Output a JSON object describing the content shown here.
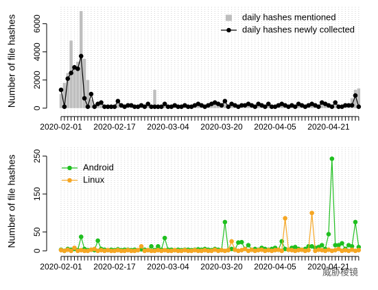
{
  "watermark": "威胁棱镜",
  "chart_data": [
    {
      "type": "combo",
      "ylabel": "Number of file hashes",
      "legend": "topright",
      "grid": true,
      "x": [
        "2020-02-01",
        "2020-02-02",
        "2020-02-03",
        "2020-02-04",
        "2020-02-05",
        "2020-02-06",
        "2020-02-07",
        "2020-02-08",
        "2020-02-09",
        "2020-02-10",
        "2020-02-11",
        "2020-02-12",
        "2020-02-13",
        "2020-02-14",
        "2020-02-15",
        "2020-02-16",
        "2020-02-17",
        "2020-02-18",
        "2020-02-19",
        "2020-02-20",
        "2020-02-21",
        "2020-02-22",
        "2020-02-23",
        "2020-02-24",
        "2020-02-25",
        "2020-02-26",
        "2020-02-27",
        "2020-02-28",
        "2020-02-29",
        "2020-03-01",
        "2020-03-02",
        "2020-03-03",
        "2020-03-04",
        "2020-03-05",
        "2020-03-06",
        "2020-03-07",
        "2020-03-08",
        "2020-03-09",
        "2020-03-10",
        "2020-03-11",
        "2020-03-12",
        "2020-03-13",
        "2020-03-14",
        "2020-03-15",
        "2020-03-16",
        "2020-03-17",
        "2020-03-18",
        "2020-03-19",
        "2020-03-20",
        "2020-03-21",
        "2020-03-22",
        "2020-03-23",
        "2020-03-24",
        "2020-03-25",
        "2020-03-26",
        "2020-03-27",
        "2020-03-28",
        "2020-03-29",
        "2020-03-30",
        "2020-03-31",
        "2020-04-01",
        "2020-04-02",
        "2020-04-03",
        "2020-04-04",
        "2020-04-05",
        "2020-04-06",
        "2020-04-07",
        "2020-04-08",
        "2020-04-09",
        "2020-04-10",
        "2020-04-11",
        "2020-04-12",
        "2020-04-13",
        "2020-04-14",
        "2020-04-15",
        "2020-04-16",
        "2020-04-17",
        "2020-04-18",
        "2020-04-19",
        "2020-04-20",
        "2020-04-21",
        "2020-04-22",
        "2020-04-23",
        "2020-04-24",
        "2020-04-25",
        "2020-04-26",
        "2020-04-27",
        "2020-04-28",
        "2020-04-29",
        "2020-04-30"
      ],
      "xticks": [
        "2020-02-01",
        "2020-02-17",
        "2020-03-04",
        "2020-03-20",
        "2020-04-05",
        "2020-04-21"
      ],
      "ylim": [
        -500,
        7200
      ],
      "yticks": [
        0,
        2000,
        4000,
        6000
      ],
      "series": [
        {
          "name": "daily hashes mentioned",
          "mark": "bar",
          "color": "#bebebe",
          "values": [
            1000,
            1800,
            2500,
            4800,
            3000,
            3300,
            6900,
            3500,
            2000,
            600,
            300,
            400,
            400,
            200,
            200,
            200,
            200,
            600,
            300,
            200,
            300,
            300,
            200,
            200,
            300,
            200,
            400,
            200,
            1300,
            200,
            200,
            400,
            200,
            200,
            300,
            200,
            200,
            300,
            200,
            200,
            300,
            400,
            300,
            200,
            300,
            400,
            500,
            400,
            300,
            500,
            200,
            400,
            300,
            200,
            300,
            300,
            400,
            300,
            200,
            400,
            300,
            200,
            400,
            200,
            200,
            300,
            400,
            300,
            200,
            300,
            200,
            400,
            300,
            200,
            300,
            400,
            300,
            200,
            500,
            400,
            300,
            200,
            500,
            200,
            200,
            300,
            300,
            700,
            1300,
            1400
          ]
        },
        {
          "name": "daily hashes newly collected",
          "mark": "line",
          "color": "#000000",
          "values": [
            1300,
            100,
            2100,
            2500,
            2900,
            2800,
            3700,
            700,
            100,
            1000,
            100,
            300,
            400,
            100,
            100,
            100,
            100,
            500,
            200,
            100,
            200,
            200,
            100,
            100,
            200,
            100,
            300,
            100,
            100,
            100,
            100,
            300,
            100,
            100,
            200,
            100,
            100,
            200,
            100,
            100,
            200,
            300,
            200,
            100,
            200,
            300,
            400,
            300,
            200,
            500,
            100,
            300,
            200,
            100,
            200,
            200,
            300,
            200,
            100,
            300,
            200,
            100,
            300,
            100,
            100,
            200,
            300,
            200,
            100,
            200,
            100,
            300,
            200,
            100,
            200,
            300,
            200,
            100,
            400,
            300,
            200,
            100,
            400,
            100,
            100,
            200,
            200,
            200,
            900,
            100
          ]
        }
      ]
    },
    {
      "type": "line",
      "ylabel": "Number of file hashes",
      "legend": "topleft",
      "grid": true,
      "x": [
        "2020-02-01",
        "2020-02-02",
        "2020-02-03",
        "2020-02-04",
        "2020-02-05",
        "2020-02-06",
        "2020-02-07",
        "2020-02-08",
        "2020-02-09",
        "2020-02-10",
        "2020-02-11",
        "2020-02-12",
        "2020-02-13",
        "2020-02-14",
        "2020-02-15",
        "2020-02-16",
        "2020-02-17",
        "2020-02-18",
        "2020-02-19",
        "2020-02-20",
        "2020-02-21",
        "2020-02-22",
        "2020-02-23",
        "2020-02-24",
        "2020-02-25",
        "2020-02-26",
        "2020-02-27",
        "2020-02-28",
        "2020-02-29",
        "2020-03-01",
        "2020-03-02",
        "2020-03-03",
        "2020-03-04",
        "2020-03-05",
        "2020-03-06",
        "2020-03-07",
        "2020-03-08",
        "2020-03-09",
        "2020-03-10",
        "2020-03-11",
        "2020-03-12",
        "2020-03-13",
        "2020-03-14",
        "2020-03-15",
        "2020-03-16",
        "2020-03-17",
        "2020-03-18",
        "2020-03-19",
        "2020-03-20",
        "2020-03-21",
        "2020-03-22",
        "2020-03-23",
        "2020-03-24",
        "2020-03-25",
        "2020-03-26",
        "2020-03-27",
        "2020-03-28",
        "2020-03-29",
        "2020-03-30",
        "2020-03-31",
        "2020-04-01",
        "2020-04-02",
        "2020-04-03",
        "2020-04-04",
        "2020-04-05",
        "2020-04-06",
        "2020-04-07",
        "2020-04-08",
        "2020-04-09",
        "2020-04-10",
        "2020-04-11",
        "2020-04-12",
        "2020-04-13",
        "2020-04-14",
        "2020-04-15",
        "2020-04-16",
        "2020-04-17",
        "2020-04-18",
        "2020-04-19",
        "2020-04-20",
        "2020-04-21",
        "2020-04-22",
        "2020-04-23",
        "2020-04-24",
        "2020-04-25",
        "2020-04-26",
        "2020-04-27",
        "2020-04-28",
        "2020-04-29",
        "2020-04-30"
      ],
      "xticks": [
        "2020-02-01",
        "2020-02-17",
        "2020-03-04",
        "2020-03-20",
        "2020-04-05",
        "2020-04-21"
      ],
      "ylim": [
        -11,
        273
      ],
      "yticks": [
        0,
        50,
        150,
        250
      ],
      "series": [
        {
          "name": "Android",
          "color": "#1fbf1f",
          "values": [
            3,
            0,
            5,
            3,
            5,
            2,
            37,
            5,
            2,
            3,
            2,
            27,
            5,
            3,
            2,
            3,
            2,
            4,
            2,
            3,
            3,
            2,
            3,
            2,
            4,
            3,
            2,
            12,
            2,
            12,
            3,
            34,
            3,
            3,
            2,
            3,
            2,
            3,
            3,
            2,
            3,
            4,
            3,
            5,
            3,
            2,
            5,
            3,
            2,
            76,
            2,
            5,
            3,
            22,
            23,
            5,
            15,
            3,
            5,
            3,
            8,
            5,
            3,
            5,
            8,
            3,
            25,
            5,
            3,
            8,
            10,
            5,
            3,
            5,
            12,
            12,
            8,
            10,
            15,
            5,
            44,
            243,
            15,
            15,
            20,
            5,
            15,
            12,
            76,
            10
          ]
        },
        {
          "name": "Linux",
          "color": "#f5a623",
          "values": [
            2,
            0,
            3,
            0,
            8,
            0,
            2,
            0,
            0,
            3,
            5,
            0,
            2,
            0,
            2,
            0,
            0,
            2,
            0,
            0,
            2,
            0,
            0,
            2,
            12,
            0,
            2,
            0,
            0,
            2,
            0,
            2,
            0,
            0,
            2,
            0,
            0,
            2,
            0,
            0,
            2,
            0,
            0,
            2,
            0,
            0,
            3,
            0,
            2,
            0,
            2,
            25,
            3,
            0,
            2,
            5,
            0,
            3,
            0,
            2,
            3,
            0,
            2,
            0,
            2,
            3,
            0,
            86,
            3,
            2,
            0,
            2,
            3,
            0,
            2,
            100,
            0,
            3,
            2,
            0,
            3,
            0,
            2,
            5,
            0,
            2,
            0,
            3,
            0,
            2
          ]
        }
      ]
    }
  ]
}
